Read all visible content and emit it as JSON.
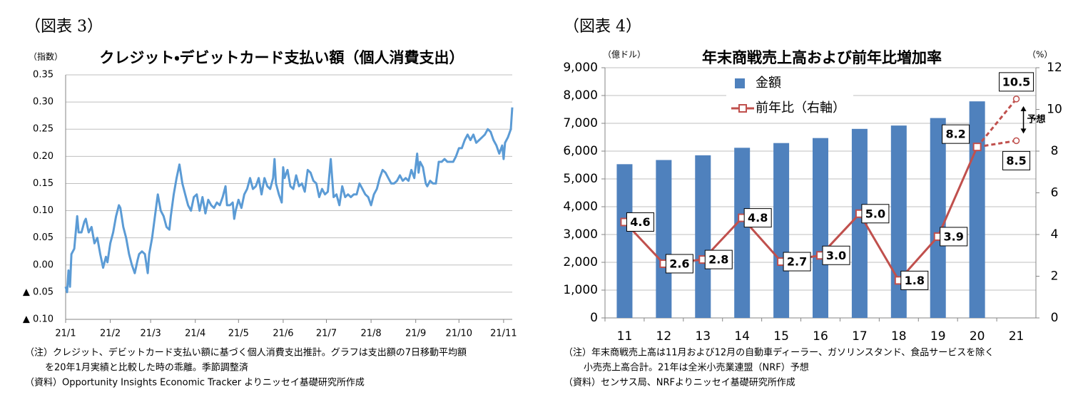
{
  "chart_data": [
    {
      "type": "line",
      "figure_label": "（図表 3）",
      "title": "クレジット・デビットカード支払い額（個人消費支出）",
      "y_label": "（指数）",
      "color": "#5b9bd5",
      "x": [
        0,
        1,
        2,
        3,
        4,
        6,
        8,
        9,
        11,
        13,
        14,
        16,
        18,
        20,
        22,
        24,
        26,
        28,
        29,
        31,
        33,
        35,
        37,
        38,
        40,
        42,
        44,
        46,
        48,
        50,
        51,
        53,
        55,
        57,
        58,
        60,
        62,
        64,
        66,
        68,
        70,
        72,
        73,
        75,
        77,
        79,
        81,
        83,
        85,
        87,
        89,
        91,
        93,
        95,
        97,
        99,
        101,
        103,
        105,
        107,
        109,
        111,
        112,
        114,
        116,
        117,
        118,
        120,
        122,
        124,
        126,
        128,
        130,
        132,
        134,
        136,
        138,
        140,
        142,
        144,
        145,
        146,
        148,
        150,
        151,
        152,
        154,
        156,
        158,
        160,
        162,
        164,
        166,
        168,
        170,
        172,
        174,
        176,
        178,
        180,
        182,
        184,
        186,
        188,
        190,
        192,
        194,
        196,
        198,
        200,
        202,
        204,
        206,
        208,
        210,
        212,
        214,
        216,
        218,
        220,
        222,
        224,
        226,
        228,
        230,
        232,
        234,
        236,
        238,
        240,
        242,
        244,
        245,
        246,
        248,
        250,
        251,
        253,
        255,
        257,
        259,
        261,
        263,
        265,
        267,
        269,
        271,
        273,
        275,
        277,
        279,
        281,
        283,
        285,
        287,
        289,
        291,
        293,
        295,
        297,
        299,
        301,
        303,
        304,
        305,
        307,
        309,
        310
      ],
      "values": [
        -0.04,
        -0.05,
        -0.01,
        -0.04,
        0.02,
        0.03,
        0.09,
        0.06,
        0.06,
        0.08,
        0.085,
        0.06,
        0.07,
        0.04,
        0.05,
        0.02,
        -0.005,
        0.015,
        0.005,
        0.04,
        0.06,
        0.09,
        0.11,
        0.105,
        0.07,
        0.05,
        0.02,
        0,
        -0.015,
        0.01,
        0.02,
        0.025,
        0.02,
        -0.015,
        0.02,
        0.05,
        0.09,
        0.13,
        0.1,
        0.09,
        0.07,
        0.065,
        0.09,
        0.13,
        0.16,
        0.185,
        0.15,
        0.13,
        0.11,
        0.1,
        0.125,
        0.13,
        0.1,
        0.125,
        0.095,
        0.12,
        0.11,
        0.105,
        0.115,
        0.11,
        0.125,
        0.145,
        0.11,
        0.11,
        0.115,
        0.085,
        0.1,
        0.12,
        0.105,
        0.13,
        0.14,
        0.16,
        0.14,
        0.145,
        0.16,
        0.13,
        0.16,
        0.145,
        0.14,
        0.16,
        0.195,
        0.15,
        0.13,
        0.115,
        0.18,
        0.16,
        0.175,
        0.145,
        0.14,
        0.165,
        0.145,
        0.15,
        0.135,
        0.175,
        0.17,
        0.155,
        0.15,
        0.125,
        0.14,
        0.13,
        0.135,
        0.195,
        0.125,
        0.13,
        0.11,
        0.145,
        0.125,
        0.13,
        0.125,
        0.13,
        0.13,
        0.15,
        0.14,
        0.13,
        0.125,
        0.11,
        0.13,
        0.14,
        0.16,
        0.175,
        0.17,
        0.16,
        0.15,
        0.15,
        0.155,
        0.165,
        0.155,
        0.16,
        0.155,
        0.175,
        0.16,
        0.205,
        0.17,
        0.19,
        0.18,
        0.15,
        0.145,
        0.155,
        0.15,
        0.15,
        0.19,
        0.19,
        0.195,
        0.19,
        0.19,
        0.19,
        0.2,
        0.215,
        0.215,
        0.23,
        0.24,
        0.23,
        0.24,
        0.225,
        0.23,
        0.235,
        0.24,
        0.25,
        0.245,
        0.23,
        0.22,
        0.205,
        0.22,
        0.195,
        0.225,
        0.235,
        0.25,
        0.29
      ],
      "xlim": [
        0,
        310
      ],
      "xticks": [
        {
          "value": 0,
          "label": "21/1"
        },
        {
          "value": 31,
          "label": "21/2"
        },
        {
          "value": 59,
          "label": "21/3"
        },
        {
          "value": 90,
          "label": "21/4"
        },
        {
          "value": 120,
          "label": "21/5"
        },
        {
          "value": 151,
          "label": "21/6"
        },
        {
          "value": 181,
          "label": "21/7"
        },
        {
          "value": 212,
          "label": "21/8"
        },
        {
          "value": 243,
          "label": "21/9"
        },
        {
          "value": 273,
          "label": "21/10"
        },
        {
          "value": 304,
          "label": "21/11"
        }
      ],
      "ylim": [
        -0.1,
        0.35
      ],
      "yticks": [
        {
          "value": -0.1,
          "label": "▲ 0.10"
        },
        {
          "value": -0.05,
          "label": "▲ 0.05"
        },
        {
          "value": 0,
          "label": "0.00"
        },
        {
          "value": 0.05,
          "label": "0.05"
        },
        {
          "value": 0.1,
          "label": "0.10"
        },
        {
          "value": 0.15,
          "label": "0.15"
        },
        {
          "value": 0.2,
          "label": "0.20"
        },
        {
          "value": 0.25,
          "label": "0.25"
        },
        {
          "value": 0.3,
          "label": "0.30"
        },
        {
          "value": 0.35,
          "label": "0.35"
        }
      ],
      "grid": true,
      "notes": [
        "（注）クレジット、デビットカード支払い額に基づく個人消費支出推計。グラフは支出額の7日移動平均額",
        "を20年1月実績と比較した時の乖離。季節調整済",
        "（資料）Opportunity Insights Economic Tracker よりニッセイ基礎研究所作成"
      ]
    },
    {
      "type": "bar",
      "figure_label": "（図表 4）",
      "title": "年末商戦売上高および前年比増加率",
      "y_label": "（億ドル）",
      "y2_label": "（%）",
      "categories": [
        "11",
        "12",
        "13",
        "14",
        "15",
        "16",
        "17",
        "18",
        "19",
        "20",
        "21"
      ],
      "series": [
        {
          "name": "金額",
          "color": "#4f81bd",
          "values": [
            5530,
            5680,
            5850,
            6120,
            6290,
            6470,
            6800,
            6920,
            7190,
            7790,
            null
          ]
        },
        {
          "name": "前年比（右軸）",
          "color": "#c0504d",
          "axis": "y2",
          "marker": "square",
          "values": [
            4.6,
            2.6,
            2.8,
            4.8,
            2.7,
            3.0,
            5.0,
            1.8,
            3.9,
            8.2,
            null
          ],
          "value_labels": [
            "4.6",
            "2.6",
            "2.8",
            "4.8",
            "2.7",
            "3.0",
            "5.0",
            "1.8",
            "3.9",
            "8.2",
            null
          ]
        },
        {
          "color": "#c0504d",
          "axis": "y2",
          "marker": "circle",
          "dashed": true,
          "values": [
            null,
            null,
            null,
            null,
            null,
            null,
            null,
            null,
            null,
            8.2,
            10.5
          ],
          "value_labels": [
            null,
            null,
            null,
            null,
            null,
            null,
            null,
            null,
            null,
            null,
            "10.5"
          ]
        },
        {
          "color": "#c0504d",
          "axis": "y2",
          "marker": "circle",
          "dashed": true,
          "values": [
            null,
            null,
            null,
            null,
            null,
            null,
            null,
            null,
            null,
            8.2,
            8.5
          ],
          "value_labels": [
            null,
            null,
            null,
            null,
            null,
            null,
            null,
            null,
            null,
            null,
            "8.5"
          ]
        }
      ],
      "annotation": "予想",
      "ylim": [
        0,
        9000
      ],
      "yticks": [
        0,
        {
          "value": 1000,
          "label": "1,000"
        },
        {
          "value": 2000,
          "label": "2,000"
        },
        {
          "value": 3000,
          "label": "3,000"
        },
        {
          "value": 4000,
          "label": "4,000"
        },
        {
          "value": 5000,
          "label": "5,000"
        },
        {
          "value": 6000,
          "label": "6,000"
        },
        {
          "value": 7000,
          "label": "7,000"
        },
        {
          "value": 8000,
          "label": "8,000"
        },
        {
          "value": 9000,
          "label": "9,000"
        }
      ],
      "y2lim": [
        0,
        12
      ],
      "y2ticks": [
        0,
        2,
        4,
        6,
        8,
        10,
        12
      ],
      "grid": true,
      "legend": "upper-left",
      "notes": [
        "（注）年末商戦売上高は11月および12月の自動車ディーラー、ガソリンスタンド、食品サービスを除く",
        "小売売上高合計。21年は全米小売業連盟（NRF）予想",
        "（資料）センサス局、NRFよりニッセイ基礎研究所作成"
      ]
    }
  ]
}
